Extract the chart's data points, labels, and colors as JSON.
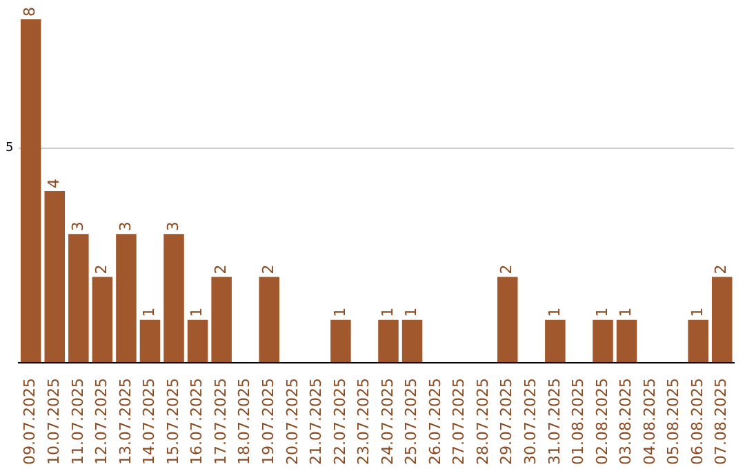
{
  "chart_data": {
    "type": "bar",
    "categories": [
      "09.07.2025",
      "10.07.2025",
      "11.07.2025",
      "12.07.2025",
      "13.07.2025",
      "14.07.2025",
      "15.07.2025",
      "16.07.2025",
      "17.07.2025",
      "18.07.2025",
      "19.07.2025",
      "20.07.2025",
      "21.07.2025",
      "22.07.2025",
      "23.07.2025",
      "24.07.2025",
      "25.07.2025",
      "26.07.2025",
      "27.07.2025",
      "28.07.2025",
      "29.07.2025",
      "30.07.2025",
      "31.07.2025",
      "01.08.2025",
      "02.08.2025",
      "03.08.2025",
      "04.08.2025",
      "05.08.2025",
      "06.08.2025",
      "07.08.2025"
    ],
    "values": [
      8,
      4,
      3,
      2,
      3,
      1,
      3,
      1,
      2,
      0,
      2,
      0,
      0,
      1,
      0,
      1,
      1,
      0,
      0,
      0,
      2,
      0,
      1,
      0,
      1,
      1,
      0,
      0,
      1,
      2
    ],
    "value_labels": [
      "8",
      "4",
      "3",
      "2",
      "3",
      "1",
      "3",
      "1",
      "2",
      null,
      "2",
      null,
      null,
      "1",
      null,
      "1",
      "1",
      null,
      null,
      null,
      "2",
      null,
      "1",
      null,
      "1",
      "1",
      null,
      null,
      "1",
      "2"
    ],
    "color": "#a0582c",
    "ylim": [
      0,
      8
    ],
    "yticks": [
      {
        "value": 0,
        "label": null
      },
      5
    ],
    "grid": "y",
    "legend": false
  }
}
